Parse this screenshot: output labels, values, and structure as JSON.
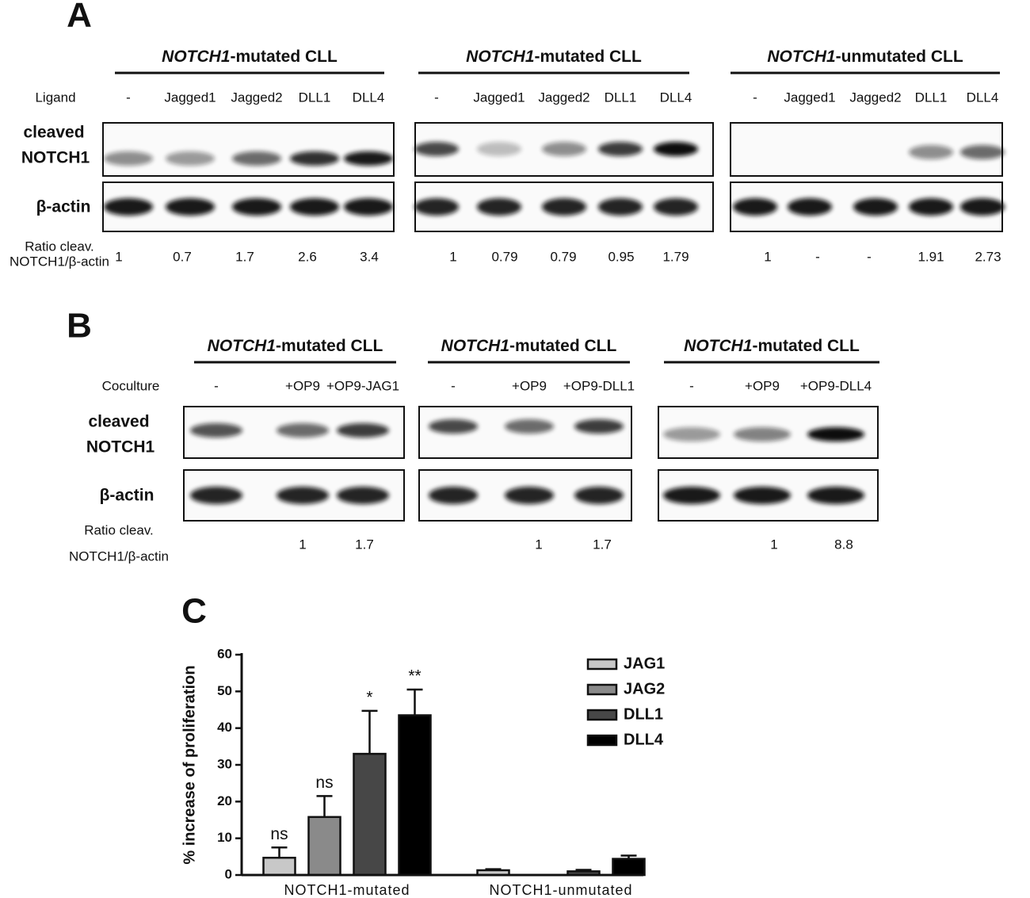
{
  "panel_a": {
    "letter": "A",
    "row_labels": {
      "ligand": "Ligand",
      "cleaved": [
        "cleaved",
        "NOTCH1"
      ],
      "actin": "β-actin",
      "ratio": [
        "Ratio cleav.",
        "NOTCH1/β-actin"
      ]
    },
    "blots": [
      {
        "title_gene": "NOTCH1",
        "title_rest": "-mutated CLL",
        "lanes": [
          "-",
          "Jagged1",
          "Jagged2",
          "DLL1",
          "DLL4"
        ],
        "ratios": [
          "1",
          "0.7",
          "1.7",
          "2.6",
          "3.4"
        ]
      },
      {
        "title_gene": "NOTCH1",
        "title_rest": "-mutated CLL",
        "lanes": [
          "-",
          "Jagged1",
          "Jagged2",
          "DLL1",
          "DLL4"
        ],
        "ratios": [
          "1",
          "0.79",
          "0.79",
          "0.95",
          "1.79"
        ]
      },
      {
        "title_gene": "NOTCH1",
        "title_rest": "-unmutated CLL",
        "lanes": [
          "-",
          "Jagged1",
          "Jagged2",
          "DLL1",
          "DLL4"
        ],
        "ratios": [
          "1",
          "-",
          "-",
          "1.91",
          "2.73"
        ]
      }
    ]
  },
  "panel_b": {
    "letter": "B",
    "row_labels": {
      "coculture": "Coculture",
      "cleaved": [
        "cleaved",
        "NOTCH1"
      ],
      "actin": "β-actin",
      "ratio": [
        "Ratio cleav.",
        "NOTCH1/β-actin"
      ]
    },
    "blots": [
      {
        "title_gene": "NOTCH1",
        "title_rest": "-mutated CLL",
        "lanes": [
          "-",
          "+OP9",
          "+OP9-JAG1"
        ],
        "ratios": [
          null,
          "1",
          "1.7"
        ]
      },
      {
        "title_gene": "NOTCH1",
        "title_rest": "-mutated CLL",
        "lanes": [
          "-",
          "+OP9",
          "+OP9-DLL1"
        ],
        "ratios": [
          null,
          "1",
          "1.7"
        ]
      },
      {
        "title_gene": "NOTCH1",
        "title_rest": "-mutated CLL",
        "lanes": [
          "-",
          "+OP9",
          "+OP9-DLL4"
        ],
        "ratios": [
          null,
          "1",
          "8.8"
        ]
      }
    ]
  },
  "chart_data": {
    "type": "bar",
    "letter": "C",
    "y_label": "% increase of proliferation",
    "categories": [
      "NOTCH1-mutated",
      "NOTCH1-unmutated"
    ],
    "ylim": [
      0,
      60
    ],
    "yticks": [
      0,
      10,
      20,
      30,
      40,
      50,
      60
    ],
    "legend": "top-right",
    "series": [
      {
        "name": "JAG1",
        "color": "#c8c8c8",
        "values": [
          4.7,
          1.3
        ],
        "errors": [
          2.8,
          0.3
        ],
        "labels": [
          "ns",
          null
        ]
      },
      {
        "name": "JAG2",
        "color": "#8a8a8a",
        "values": [
          15.8,
          0
        ],
        "errors": [
          5.7,
          0
        ],
        "labels": [
          "ns",
          null
        ]
      },
      {
        "name": "DLL1",
        "color": "#474747",
        "values": [
          33,
          1
        ],
        "errors": [
          11.7,
          0.4
        ],
        "labels": [
          "*",
          null
        ]
      },
      {
        "name": "DLL4",
        "color": "#000000",
        "values": [
          43.5,
          4.4
        ],
        "errors": [
          7,
          0.9
        ],
        "labels": [
          "**",
          null
        ]
      }
    ]
  }
}
